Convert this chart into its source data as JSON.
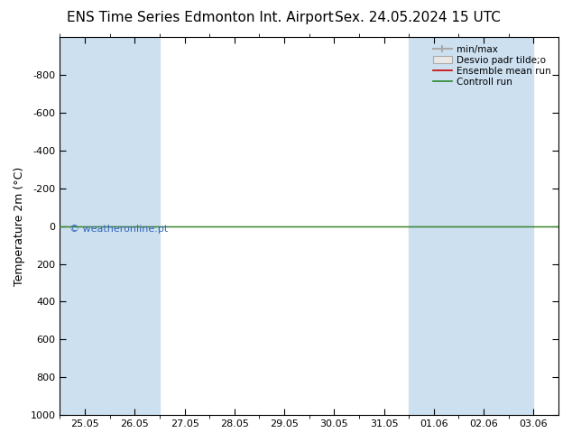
{
  "title_left": "ENS Time Series Edmonton Int. Airport",
  "title_right": "Sex. 24.05.2024 15 UTC",
  "ylabel": "Temperature 2m (°C)",
  "ylim_top": -1000,
  "ylim_bottom": 1000,
  "yticks": [
    -800,
    -600,
    -400,
    -200,
    0,
    200,
    400,
    600,
    800,
    1000
  ],
  "xtick_labels": [
    "25.05",
    "26.05",
    "27.05",
    "28.05",
    "29.05",
    "30.05",
    "31.05",
    "01.06",
    "02.06",
    "03.06"
  ],
  "xtick_positions": [
    0,
    1,
    2,
    3,
    4,
    5,
    6,
    7,
    8,
    9
  ],
  "xlim": [
    -0.5,
    9.5
  ],
  "shaded_spans": [
    [
      0,
      1
    ],
    [
      1,
      2
    ],
    [
      7,
      8
    ],
    [
      8,
      9
    ],
    [
      9,
      9.5
    ]
  ],
  "shaded_color": "#cce0f0",
  "green_line_color": "#2a8a2a",
  "red_line_color": "#cc0000",
  "background_color": "#ffffff",
  "watermark_text": "© weatheronline.pt",
  "watermark_color": "#3366bb",
  "legend_labels": [
    "min/max",
    "Desvio padr tilde;o",
    "Ensemble mean run",
    "Controll run"
  ],
  "title_fontsize": 11,
  "ylabel_fontsize": 9,
  "tick_fontsize": 8,
  "legend_fontsize": 7.5,
  "watermark_fontsize": 8
}
